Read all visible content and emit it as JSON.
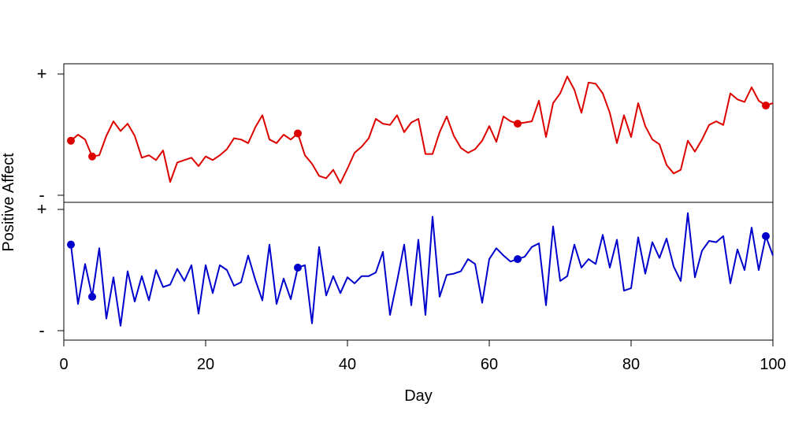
{
  "chart_data": {
    "type": "line",
    "xlabel": "Day",
    "ylabel": "Positive Affect",
    "x_ticks": [
      "0",
      "20",
      "40",
      "60",
      "80",
      "100"
    ],
    "xlim": [
      0,
      100
    ],
    "panels": [
      {
        "y_tick_labels": [
          "+",
          "-"
        ],
        "ylim": [
          0,
          1
        ],
        "series": [
          {
            "color": "#dd0000",
            "x": [
              1,
              2,
              3,
              4,
              5,
              6,
              7,
              8,
              9,
              10,
              11,
              12,
              13,
              14,
              15,
              16,
              17,
              18,
              19,
              20,
              21,
              22,
              23,
              24,
              25,
              26,
              27,
              28,
              29,
              30,
              31,
              32,
              33,
              34,
              35,
              36,
              37,
              38,
              39,
              40,
              41,
              42,
              43,
              44,
              45,
              46,
              47,
              48,
              49,
              50,
              51,
              52,
              53,
              54,
              55,
              56,
              57,
              58,
              59,
              60,
              61,
              62,
              63,
              64,
              65,
              66,
              67,
              68,
              69,
              70,
              71,
              72,
              73,
              74,
              75,
              76,
              77,
              78,
              79,
              80,
              81,
              82,
              83,
              84,
              85,
              86,
              87,
              88,
              89,
              90,
              91,
              92,
              93,
              94,
              95,
              96,
              97,
              98,
              99,
              100
            ],
            "values": [
              0.45,
              0.5,
              0.46,
              0.32,
              0.33,
              0.49,
              0.61,
              0.53,
              0.59,
              0.49,
              0.31,
              0.33,
              0.29,
              0.37,
              0.11,
              0.27,
              0.29,
              0.31,
              0.24,
              0.32,
              0.29,
              0.33,
              0.38,
              0.47,
              0.46,
              0.43,
              0.56,
              0.66,
              0.46,
              0.43,
              0.5,
              0.46,
              0.51,
              0.33,
              0.26,
              0.16,
              0.14,
              0.21,
              0.1,
              0.22,
              0.35,
              0.4,
              0.47,
              0.63,
              0.59,
              0.58,
              0.66,
              0.52,
              0.6,
              0.63,
              0.34,
              0.34,
              0.52,
              0.65,
              0.49,
              0.39,
              0.35,
              0.38,
              0.45,
              0.57,
              0.44,
              0.65,
              0.61,
              0.59,
              0.6,
              0.61,
              0.78,
              0.48,
              0.76,
              0.84,
              0.98,
              0.87,
              0.68,
              0.93,
              0.92,
              0.84,
              0.68,
              0.43,
              0.66,
              0.48,
              0.76,
              0.57,
              0.46,
              0.42,
              0.25,
              0.18,
              0.21,
              0.45,
              0.36,
              0.46,
              0.58,
              0.61,
              0.58,
              0.84,
              0.79,
              0.77,
              0.89,
              0.78,
              0.74,
              0.76
            ],
            "highlight_x": [
              1,
              4,
              33,
              64,
              99
            ]
          }
        ]
      },
      {
        "y_tick_labels": [
          "+",
          "-"
        ],
        "ylim": [
          0,
          1
        ],
        "series": [
          {
            "color": "#0000cc",
            "x": [
              1,
              2,
              3,
              4,
              5,
              6,
              7,
              8,
              9,
              10,
              11,
              12,
              13,
              14,
              15,
              16,
              17,
              18,
              19,
              20,
              21,
              22,
              23,
              24,
              25,
              26,
              27,
              28,
              29,
              30,
              31,
              32,
              33,
              34,
              35,
              36,
              37,
              38,
              39,
              40,
              41,
              42,
              43,
              44,
              45,
              46,
              47,
              48,
              49,
              50,
              51,
              52,
              53,
              54,
              55,
              56,
              57,
              58,
              59,
              60,
              61,
              62,
              63,
              64,
              65,
              66,
              67,
              68,
              69,
              70,
              71,
              72,
              73,
              74,
              75,
              76,
              77,
              78,
              79,
              80,
              81,
              82,
              83,
              84,
              85,
              86,
              87,
              88,
              89,
              90,
              91,
              92,
              93,
              94,
              95,
              96,
              97,
              98,
              99,
              100
            ],
            "values": [
              0.71,
              0.22,
              0.55,
              0.28,
              0.68,
              0.1,
              0.44,
              0.04,
              0.49,
              0.24,
              0.45,
              0.25,
              0.5,
              0.36,
              0.38,
              0.51,
              0.41,
              0.54,
              0.14,
              0.54,
              0.31,
              0.54,
              0.5,
              0.37,
              0.4,
              0.62,
              0.42,
              0.25,
              0.71,
              0.22,
              0.43,
              0.26,
              0.52,
              0.54,
              0.06,
              0.69,
              0.29,
              0.45,
              0.31,
              0.44,
              0.39,
              0.45,
              0.45,
              0.48,
              0.65,
              0.13,
              0.41,
              0.71,
              0.21,
              0.75,
              0.13,
              0.94,
              0.28,
              0.46,
              0.47,
              0.49,
              0.59,
              0.55,
              0.23,
              0.59,
              0.68,
              0.62,
              0.57,
              0.59,
              0.61,
              0.69,
              0.72,
              0.21,
              0.86,
              0.41,
              0.45,
              0.71,
              0.52,
              0.59,
              0.55,
              0.79,
              0.52,
              0.75,
              0.33,
              0.35,
              0.77,
              0.47,
              0.73,
              0.6,
              0.76,
              0.53,
              0.41,
              0.97,
              0.44,
              0.66,
              0.74,
              0.73,
              0.78,
              0.39,
              0.67,
              0.5,
              0.85,
              0.5,
              0.78,
              0.62
            ],
            "highlight_x": [
              1,
              4,
              33,
              64,
              99
            ]
          }
        ]
      }
    ]
  }
}
